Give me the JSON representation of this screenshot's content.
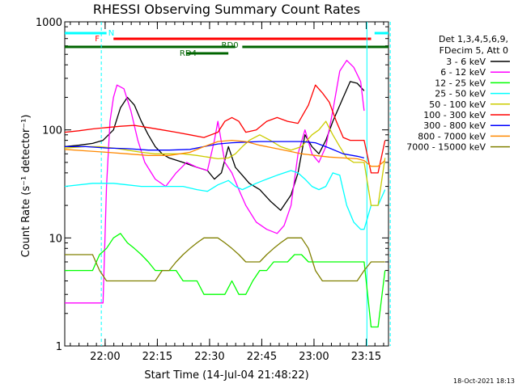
{
  "chart_data": {
    "type": "line",
    "title": "RHESSI Observing Summary Count Rates",
    "xlabel": "Start Time (14-Jul-04 21:48:22)",
    "ylabel": "Count Rate (s⁻¹ detector⁻¹)",
    "y_scale": "log",
    "ylim": [
      1,
      1000
    ],
    "xlim_minutes_after_start": [
      0,
      93
    ],
    "x_tick_labels": [
      "22:00",
      "22:15",
      "22:30",
      "22:45",
      "23:00",
      "23:15"
    ],
    "x_tick_minutes": [
      11.6,
      26.6,
      41.6,
      56.6,
      71.6,
      86.6
    ],
    "y_tick_labels": [
      "1",
      "10",
      "100",
      "1000"
    ],
    "y_tick_values": [
      1,
      10,
      100,
      1000
    ],
    "legend_header": [
      "Det 1,3,4,5,6,9,",
      "FDecim 5, Att 0"
    ],
    "legend_position": "right",
    "timestamp": "18-Oct-2021 18:13",
    "flag_bars": [
      {
        "label": "N",
        "color": "#00ffff",
        "segments": [
          [
            0,
            12
          ],
          [
            89,
            99
          ]
        ]
      },
      {
        "label": "F",
        "color": "#ff0000",
        "segments": [
          [
            14,
            88
          ]
        ]
      },
      {
        "label": "RD0",
        "color": "#006400",
        "segments": [
          [
            0,
            49
          ],
          [
            51,
            88
          ],
          [
            88,
            95
          ]
        ]
      },
      {
        "label": "RD4",
        "color": "#006400",
        "segments": [
          [
            35,
            47
          ]
        ]
      }
    ],
    "vertical_lines": [
      {
        "minute": 10.5,
        "style": "dashed",
        "color": "#00ffff"
      },
      {
        "minute": 86.8,
        "style": "solid",
        "color": "#00ffff"
      },
      {
        "minute": 93.5,
        "style": "dashed",
        "color": "#00ffff"
      }
    ],
    "series": [
      {
        "name": "3 - 6 keV",
        "color": "#000000",
        "x": [
          0,
          4,
          8,
          11,
          14,
          16,
          18,
          20,
          22,
          24,
          26,
          28,
          30,
          34,
          38,
          41,
          43,
          45,
          47,
          49,
          51,
          53,
          56,
          59,
          62,
          65,
          67,
          69,
          71,
          73,
          75,
          77,
          80,
          82,
          84,
          86
        ],
        "y": [
          70,
          72,
          75,
          80,
          100,
          160,
          200,
          170,
          120,
          90,
          70,
          60,
          55,
          50,
          45,
          42,
          35,
          40,
          70,
          45,
          38,
          32,
          28,
          22,
          18,
          25,
          40,
          90,
          70,
          60,
          80,
          120,
          200,
          280,
          270,
          230
        ]
      },
      {
        "name": "6 - 12 keV",
        "color": "#ff00ff",
        "x": [
          0,
          6,
          8,
          10,
          11,
          12,
          13,
          14,
          15,
          17,
          19,
          21,
          23,
          26,
          29,
          32,
          35,
          38,
          41,
          43,
          44,
          46,
          48,
          50,
          52,
          55,
          58,
          61,
          63,
          65,
          67,
          69,
          71,
          73,
          75,
          77,
          79,
          81,
          83,
          85,
          86
        ],
        "y": [
          2.5,
          2.5,
          2.5,
          2.5,
          2.5,
          30,
          120,
          200,
          260,
          240,
          150,
          80,
          50,
          35,
          30,
          40,
          50,
          45,
          42,
          80,
          120,
          50,
          40,
          28,
          20,
          14,
          12,
          11,
          13,
          20,
          60,
          100,
          60,
          50,
          70,
          150,
          350,
          440,
          380,
          280,
          150
        ]
      },
      {
        "name": "12 - 25 keV",
        "color": "#00ff00",
        "x": [
          0,
          4,
          8,
          10,
          12,
          14,
          16,
          18,
          20,
          22,
          24,
          26,
          28,
          30,
          32,
          34,
          36,
          38,
          40,
          42,
          44,
          46,
          48,
          50,
          52,
          54,
          56,
          58,
          60,
          62,
          64,
          66,
          68,
          70,
          72,
          74,
          76,
          78,
          80,
          82,
          84,
          86,
          88,
          90,
          92
        ],
        "y": [
          5,
          5,
          5,
          7,
          8,
          10,
          11,
          9,
          8,
          7,
          6,
          5,
          5,
          5,
          5,
          4,
          4,
          4,
          3,
          3,
          3,
          3,
          4,
          3,
          3,
          4,
          5,
          5,
          6,
          6,
          6,
          7,
          7,
          6,
          6,
          6,
          6,
          6,
          6,
          6,
          6,
          6,
          1.5,
          1.5,
          5
        ]
      },
      {
        "name": "25 - 50 keV",
        "color": "#00ffff",
        "x": [
          0,
          8,
          14,
          18,
          22,
          26,
          30,
          34,
          38,
          41,
          44,
          47,
          49,
          51,
          53,
          55,
          57,
          59,
          61,
          63,
          65,
          67,
          69,
          71,
          73,
          75,
          77,
          79,
          81,
          83,
          85,
          86,
          88,
          90,
          92
        ],
        "y": [
          30,
          32,
          32,
          31,
          30,
          30,
          30,
          30,
          28,
          27,
          31,
          34,
          30,
          28,
          30,
          32,
          34,
          36,
          38,
          40,
          42,
          40,
          35,
          30,
          28,
          30,
          40,
          38,
          20,
          14,
          12,
          12,
          20,
          20,
          28
        ]
      },
      {
        "name": "50 - 100 keV",
        "color": "#cccc00",
        "x": [
          0,
          6,
          10,
          14,
          18,
          22,
          26,
          30,
          34,
          38,
          41,
          44,
          47,
          49,
          51,
          53,
          56,
          59,
          62,
          65,
          68,
          71,
          73,
          75,
          77,
          79,
          81,
          83,
          85,
          86,
          88,
          90,
          92
        ],
        "y": [
          68,
          70,
          70,
          68,
          65,
          62,
          60,
          60,
          60,
          58,
          56,
          54,
          55,
          60,
          70,
          80,
          90,
          80,
          70,
          65,
          70,
          90,
          100,
          120,
          90,
          70,
          55,
          50,
          50,
          50,
          20,
          20,
          55
        ]
      },
      {
        "name": "100 - 300 keV",
        "color": "#ff0000",
        "x": [
          0,
          4,
          8,
          12,
          16,
          20,
          24,
          28,
          32,
          36,
          40,
          44,
          46,
          48,
          50,
          52,
          55,
          58,
          61,
          64,
          67,
          70,
          72,
          74,
          76,
          78,
          80,
          82,
          84,
          86,
          88,
          90,
          92
        ],
        "y": [
          95,
          98,
          102,
          105,
          108,
          110,
          105,
          100,
          95,
          90,
          85,
          95,
          120,
          130,
          120,
          95,
          100,
          120,
          130,
          120,
          115,
          170,
          260,
          220,
          180,
          120,
          85,
          80,
          80,
          80,
          40,
          40,
          80
        ]
      },
      {
        "name": "300 - 800 keV",
        "color": "#0000ff",
        "x": [
          0,
          6,
          12,
          18,
          24,
          30,
          36,
          40,
          44,
          48,
          52,
          56,
          60,
          64,
          68,
          72,
          76,
          80,
          84,
          86
        ],
        "y": [
          70,
          70,
          68,
          67,
          65,
          65,
          66,
          70,
          74,
          76,
          77,
          78,
          78,
          78,
          78,
          76,
          68,
          60,
          57,
          55
        ]
      },
      {
        "name": "800 - 7000 keV",
        "color": "#ff8800",
        "x": [
          0,
          6,
          12,
          18,
          24,
          30,
          36,
          40,
          44,
          48,
          52,
          56,
          60,
          64,
          68,
          72,
          76,
          80,
          84,
          86,
          88,
          90,
          92
        ],
        "y": [
          66,
          64,
          62,
          60,
          58,
          58,
          62,
          70,
          78,
          80,
          78,
          72,
          68,
          64,
          60,
          58,
          56,
          55,
          54,
          52,
          46,
          46,
          52
        ]
      },
      {
        "name": "7000 - 15000 keV",
        "color": "#808000",
        "x": [
          0,
          4,
          8,
          10,
          12,
          14,
          16,
          18,
          20,
          22,
          24,
          26,
          28,
          30,
          32,
          34,
          36,
          38,
          40,
          42,
          44,
          46,
          48,
          50,
          52,
          54,
          56,
          58,
          60,
          62,
          64,
          66,
          68,
          70,
          72,
          74,
          76,
          78,
          80,
          82,
          84,
          86,
          88,
          90,
          92
        ],
        "y": [
          7,
          7,
          7,
          5,
          4,
          4,
          4,
          4,
          4,
          4,
          4,
          4,
          5,
          5,
          6,
          7,
          8,
          9,
          10,
          10,
          10,
          9,
          8,
          7,
          6,
          6,
          6,
          7,
          8,
          9,
          10,
          10,
          10,
          8,
          5,
          4,
          4,
          4,
          4,
          4,
          4,
          5,
          6,
          6,
          6
        ]
      }
    ]
  }
}
